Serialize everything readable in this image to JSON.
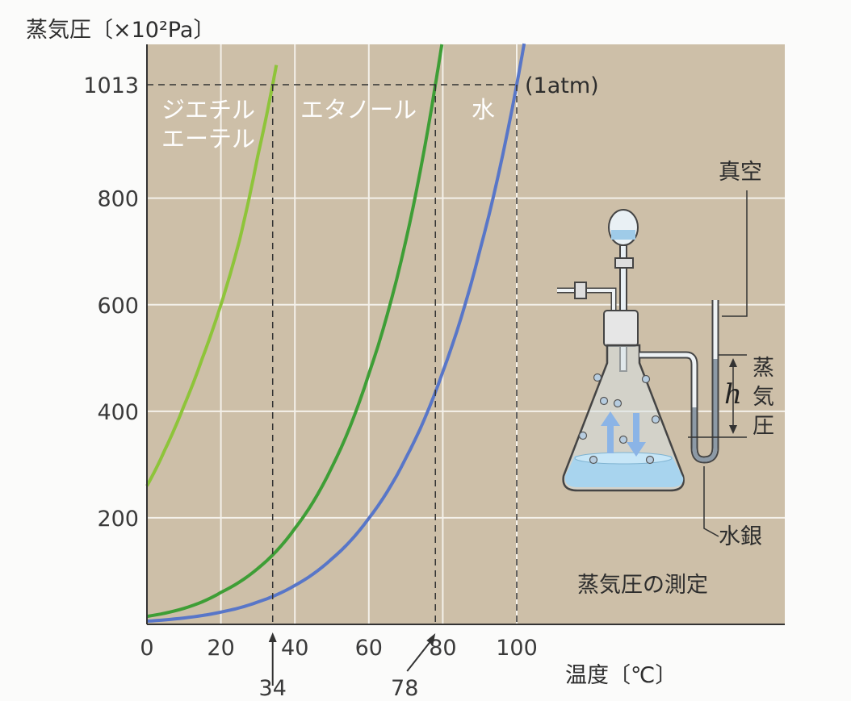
{
  "chart_data": {
    "type": "line",
    "ylabel": "蒸気圧〔×10²Pa〕",
    "xlabel": "温度〔℃〕",
    "xlim": [
      0,
      100
    ],
    "ylim": [
      0,
      1013
    ],
    "x_ticks": [
      "0",
      "20",
      "40",
      "60",
      "80",
      "100"
    ],
    "y_ticks": [
      "200",
      "400",
      "600",
      "800",
      "1013"
    ],
    "reference_line": {
      "y": 1013,
      "label": "(1atm)"
    },
    "boiling_points": [
      {
        "x": 34,
        "label": "34"
      },
      {
        "x": 78,
        "label": "78"
      },
      {
        "x": 100,
        "label": ""
      }
    ],
    "series": [
      {
        "name": "ジエチルエーテル",
        "name_lines": [
          "ジエチル",
          "エーテル"
        ],
        "color": "#8ec43a",
        "x": [
          0,
          5,
          10,
          15,
          20,
          25,
          30,
          34,
          35
        ],
        "y": [
          260,
          330,
          410,
          500,
          600,
          720,
          880,
          1013,
          1050
        ]
      },
      {
        "name": "エタノール",
        "color": "#3e9e36",
        "x": [
          0,
          10,
          20,
          30,
          40,
          50,
          60,
          70,
          78,
          80
        ],
        "y": [
          15,
          30,
          60,
          105,
          180,
          295,
          470,
          720,
          1013,
          1100
        ]
      },
      {
        "name": "水",
        "color": "#5876c8",
        "x": [
          0,
          10,
          20,
          30,
          40,
          50,
          60,
          70,
          80,
          90,
          100,
          102
        ],
        "y": [
          6,
          12,
          23,
          42,
          73,
          123,
          199,
          312,
          474,
          701,
          1013,
          1090
        ]
      }
    ]
  },
  "apparatus": {
    "title": "蒸気圧の測定",
    "vacuum_label": "真空",
    "vapor_pressure_label": "蒸気圧",
    "height_label": "h",
    "mercury_label": "水銀"
  }
}
